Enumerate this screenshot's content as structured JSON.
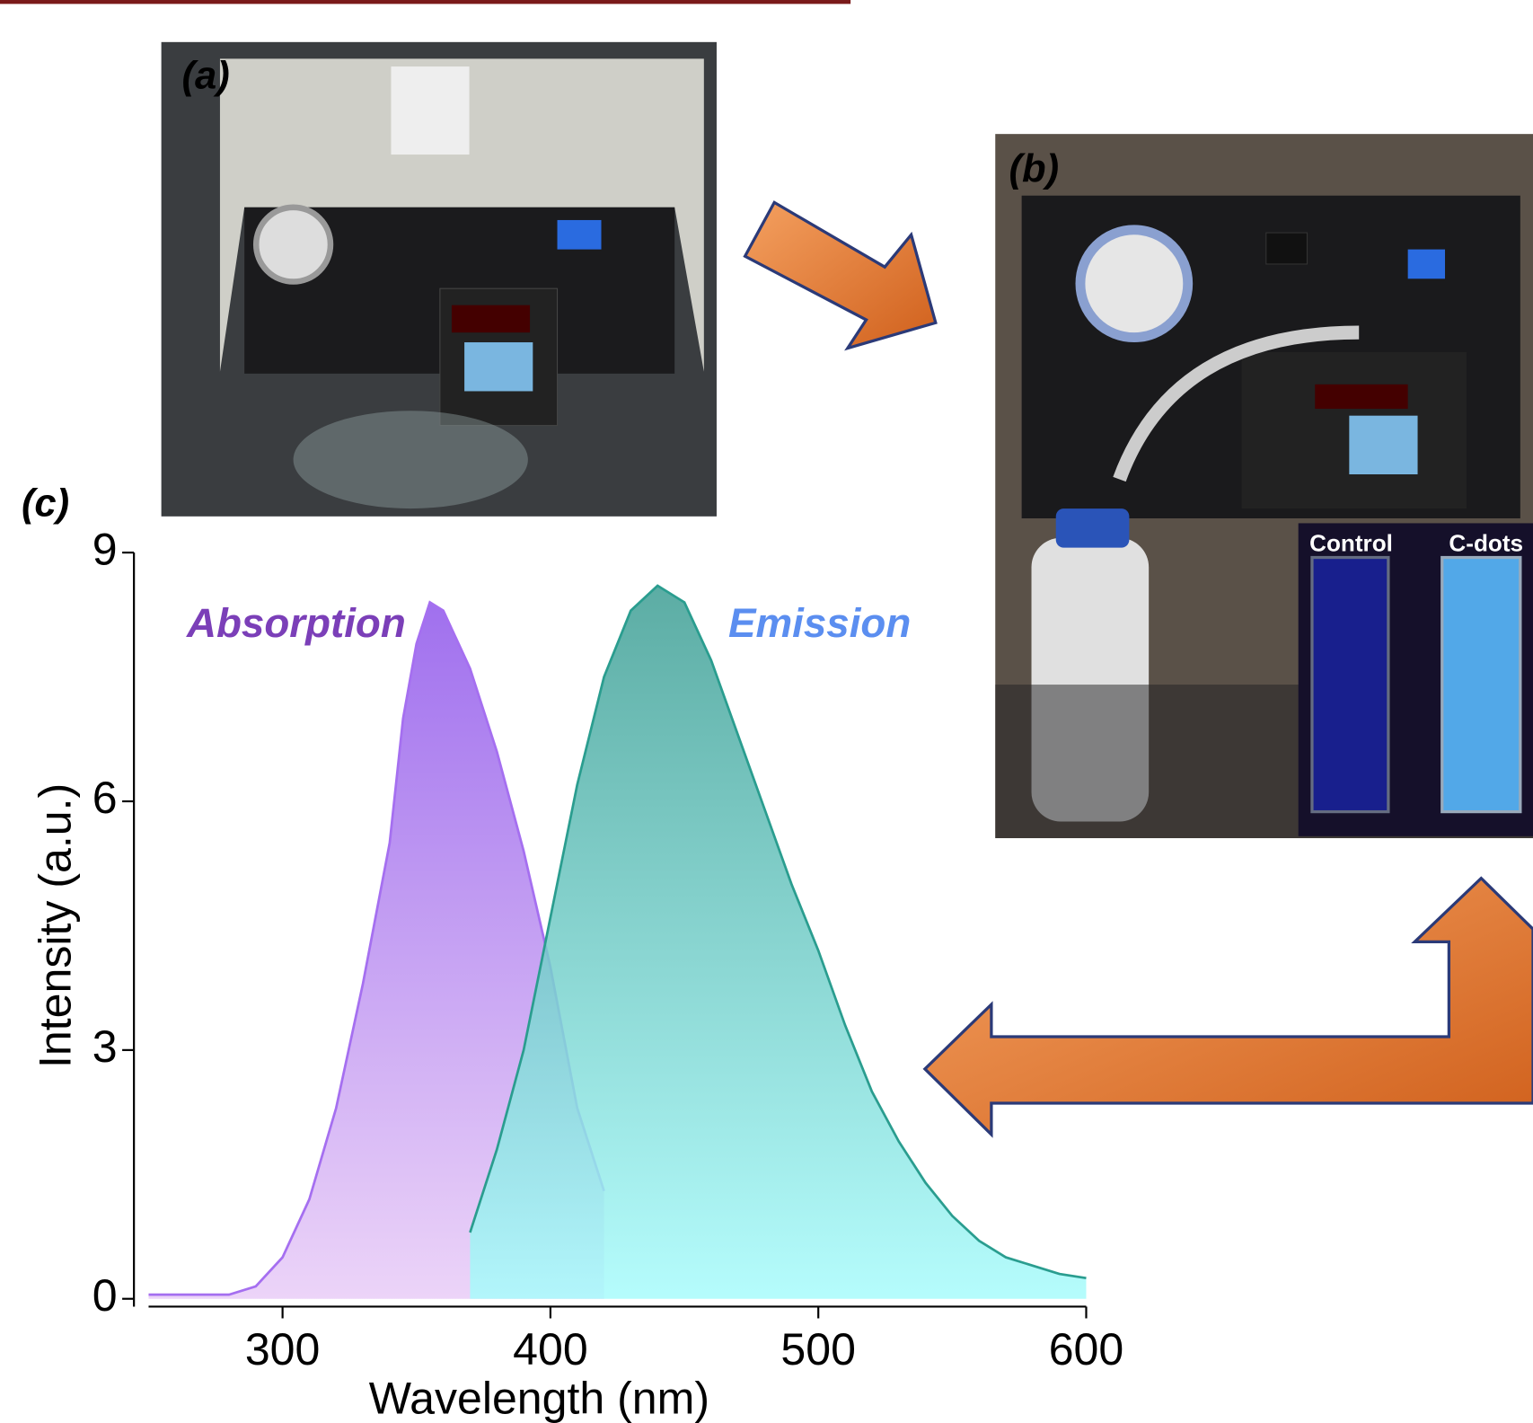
{
  "panels": {
    "a": "(a)",
    "b": "(b)",
    "c": "(c)"
  },
  "inset_labels": [
    "Control",
    "C-dots"
  ],
  "chart_data": {
    "type": "area",
    "x_label": "Wavelength (nm)",
    "y_label": "Intensity (a.u.)",
    "xlim": [
      250,
      600
    ],
    "ylim": [
      0,
      9
    ],
    "xticks": [
      300,
      400,
      500,
      600
    ],
    "yticks": [
      0,
      3,
      6,
      9
    ],
    "series": [
      {
        "name": "Absorption",
        "color": "#a56ff0",
        "label_color": "#7b3fb8",
        "fill_top": "#a070ee",
        "fill_bottom": "#ecd4f8",
        "x": [
          250,
          260,
          270,
          280,
          290,
          300,
          310,
          320,
          330,
          340,
          345,
          350,
          355,
          360,
          370,
          380,
          390,
          400,
          410,
          420
        ],
        "values": [
          0.05,
          0.05,
          0.05,
          0.05,
          0.15,
          0.5,
          1.2,
          2.3,
          3.8,
          5.5,
          7.0,
          7.9,
          8.4,
          8.3,
          7.6,
          6.6,
          5.4,
          4.0,
          2.3,
          1.3
        ]
      },
      {
        "name": "Emission",
        "color": "#2a9d8f",
        "label_color": "#5b8ef0",
        "fill_top": "#3f9e94",
        "fill_bottom": "#a8fcfc",
        "x": [
          370,
          380,
          390,
          400,
          410,
          420,
          430,
          440,
          450,
          460,
          470,
          480,
          490,
          500,
          510,
          520,
          530,
          540,
          550,
          560,
          570,
          580,
          590,
          600
        ],
        "values": [
          0.8,
          1.8,
          3.0,
          4.6,
          6.2,
          7.5,
          8.3,
          8.6,
          8.4,
          7.7,
          6.8,
          5.9,
          5.0,
          4.2,
          3.3,
          2.5,
          1.9,
          1.4,
          1.0,
          0.7,
          0.5,
          0.4,
          0.3,
          0.25
        ]
      }
    ]
  }
}
